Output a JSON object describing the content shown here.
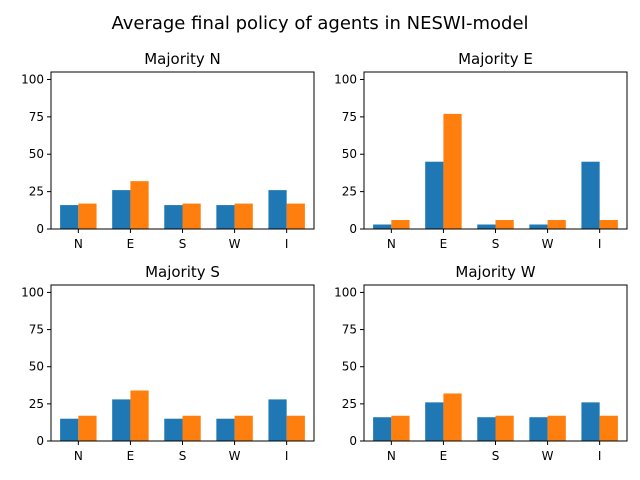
{
  "suptitle": "Average final policy of agents in NESWI-model",
  "colors": {
    "series_a": "#1f77b4",
    "series_b": "#ff7f0e"
  },
  "chart_data": [
    {
      "type": "bar",
      "title": "Majority N",
      "categories": [
        "N",
        "E",
        "S",
        "W",
        "I"
      ],
      "ylim": [
        0,
        105
      ],
      "yticks": [
        0,
        25,
        50,
        75,
        100
      ],
      "series": [
        {
          "values": [
            16,
            26,
            16,
            16,
            26
          ]
        },
        {
          "values": [
            17,
            32,
            17,
            17,
            17
          ]
        }
      ]
    },
    {
      "type": "bar",
      "title": "Majority E",
      "categories": [
        "N",
        "E",
        "S",
        "W",
        "I"
      ],
      "ylim": [
        0,
        105
      ],
      "yticks": [
        0,
        25,
        50,
        75,
        100
      ],
      "series": [
        {
          "values": [
            3,
            45,
            3,
            3,
            45
          ]
        },
        {
          "values": [
            6,
            77,
            6,
            6,
            6
          ]
        }
      ]
    },
    {
      "type": "bar",
      "title": "Majority S",
      "categories": [
        "N",
        "E",
        "S",
        "W",
        "I"
      ],
      "ylim": [
        0,
        105
      ],
      "yticks": [
        0,
        25,
        50,
        75,
        100
      ],
      "series": [
        {
          "values": [
            15,
            28,
            15,
            15,
            28
          ]
        },
        {
          "values": [
            17,
            34,
            17,
            17,
            17
          ]
        }
      ]
    },
    {
      "type": "bar",
      "title": "Majority W",
      "categories": [
        "N",
        "E",
        "S",
        "W",
        "I"
      ],
      "ylim": [
        0,
        105
      ],
      "yticks": [
        0,
        25,
        50,
        75,
        100
      ],
      "series": [
        {
          "values": [
            16,
            26,
            16,
            16,
            26
          ]
        },
        {
          "values": [
            17,
            32,
            17,
            17,
            17
          ]
        }
      ]
    }
  ]
}
